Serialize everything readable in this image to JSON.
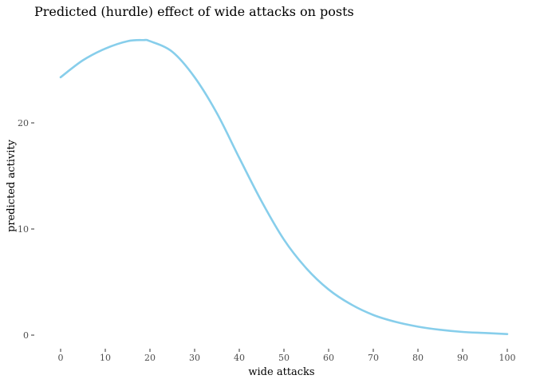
{
  "chart_data": {
    "type": "line",
    "title": "Predicted (hurdle) effect of wide attacks on posts",
    "xlabel": "wide attacks",
    "ylabel": "predicted activity",
    "xlim": [
      0,
      100
    ],
    "ylim": [
      0,
      28
    ],
    "x_ticks": [
      0,
      10,
      20,
      30,
      40,
      50,
      60,
      70,
      80,
      90,
      100
    ],
    "y_ticks": [
      0,
      10,
      20
    ],
    "grid": false,
    "legend": "none",
    "series": [
      {
        "color": "#87CEEB",
        "x": [
          0,
          5,
          10,
          15,
          18.5,
          20,
          25,
          30,
          35,
          40,
          45,
          50,
          55,
          60,
          65,
          70,
          75,
          80,
          85,
          90,
          95,
          100
        ],
        "y": [
          24.3,
          25.9,
          27.0,
          27.7,
          27.8,
          27.7,
          26.7,
          24.3,
          20.9,
          16.7,
          12.6,
          9.0,
          6.3,
          4.3,
          2.9,
          1.9,
          1.25,
          0.8,
          0.5,
          0.3,
          0.2,
          0.1
        ]
      }
    ]
  }
}
